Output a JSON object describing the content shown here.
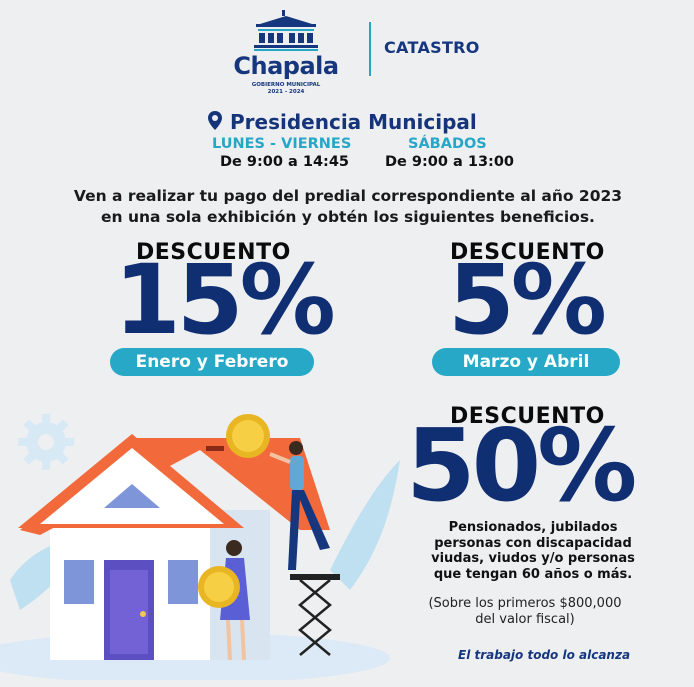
{
  "header": {
    "logo_name": "Chapala",
    "logo_subtitle": "GOBIERNO MUNICIPAL",
    "logo_years": "2021 - 2024",
    "department": "CATASTRO"
  },
  "office": {
    "place": "Presidencia Municipal",
    "weekdays_label": "LUNES - VIERNES",
    "weekdays_hours": "De 9:00 a 14:45",
    "saturday_label": "SÁBADOS",
    "saturday_hours": "De 9:00 a 13:00"
  },
  "intro": {
    "line1": "Ven a realizar tu pago del predial correspondiente al año 2023",
    "line2": "en una sola exhibición y obtén los siguientes beneficios."
  },
  "discounts": [
    {
      "label": "DESCUENTO",
      "value": "15%",
      "period": "Enero y Febrero"
    },
    {
      "label": "DESCUENTO",
      "value": "5%",
      "period": "Marzo y Abril"
    },
    {
      "label": "DESCUENTO",
      "value": "50%"
    }
  ],
  "eligibility": {
    "line1": "Pensionados, jubilados",
    "line2": "personas con discapacidad",
    "line3": "viudas, viudos y/o personas",
    "line4": "que tengan 60 años o más."
  },
  "note": {
    "line1": "(Sobre los primeros $800,000",
    "line2": "del valor fiscal)"
  },
  "slogan": "El trabajo todo lo alcanza",
  "colors": {
    "navy": "#102f73",
    "teal": "#26a8c6",
    "background": "#eeeff1",
    "roof": "#f26a3b"
  },
  "icons": [
    "building-logo-icon",
    "location-pin-icon",
    "gear-icon",
    "coin-icon",
    "house-illustration"
  ]
}
